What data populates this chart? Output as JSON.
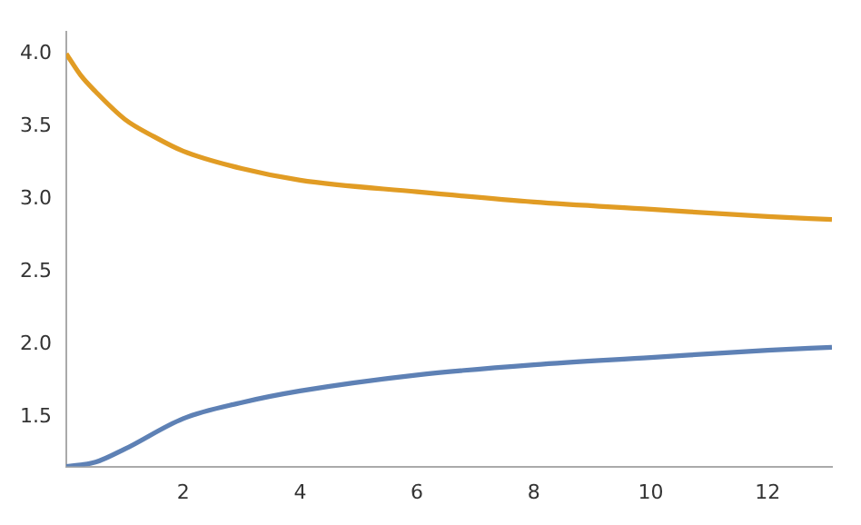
{
  "chart_data": {
    "type": "line",
    "grid": false,
    "legend": false,
    "marker": "none",
    "line_style": "solid",
    "xlim": [
      0,
      13.1
    ],
    "ylim": [
      1.16,
      4.15
    ],
    "xticks": [
      2,
      4,
      6,
      8,
      10,
      12
    ],
    "yticks": [
      1.5,
      {
        "value": 2,
        "label": "2.0"
      },
      2.5,
      {
        "value": 3,
        "label": "3.0"
      },
      3.5,
      {
        "value": 4,
        "label": "4.0"
      }
    ],
    "series": [
      {
        "color": "#e19c24",
        "x": [
          0,
          0.25,
          0.5,
          1,
          1.5,
          2,
          3,
          4,
          6,
          8,
          10,
          12,
          13.1
        ],
        "values": [
          4.0,
          3.85,
          3.74,
          3.55,
          3.43,
          3.33,
          3.21,
          3.13,
          3.05,
          2.98,
          2.93,
          2.88,
          2.86
        ]
      },
      {
        "color": "#5e81b5",
        "x": [
          0,
          0.5,
          1,
          2,
          3,
          4,
          6,
          8,
          10,
          12,
          13.1
        ],
        "values": [
          1.16,
          1.19,
          1.28,
          1.49,
          1.6,
          1.68,
          1.79,
          1.86,
          1.91,
          1.96,
          1.98
        ]
      }
    ]
  }
}
